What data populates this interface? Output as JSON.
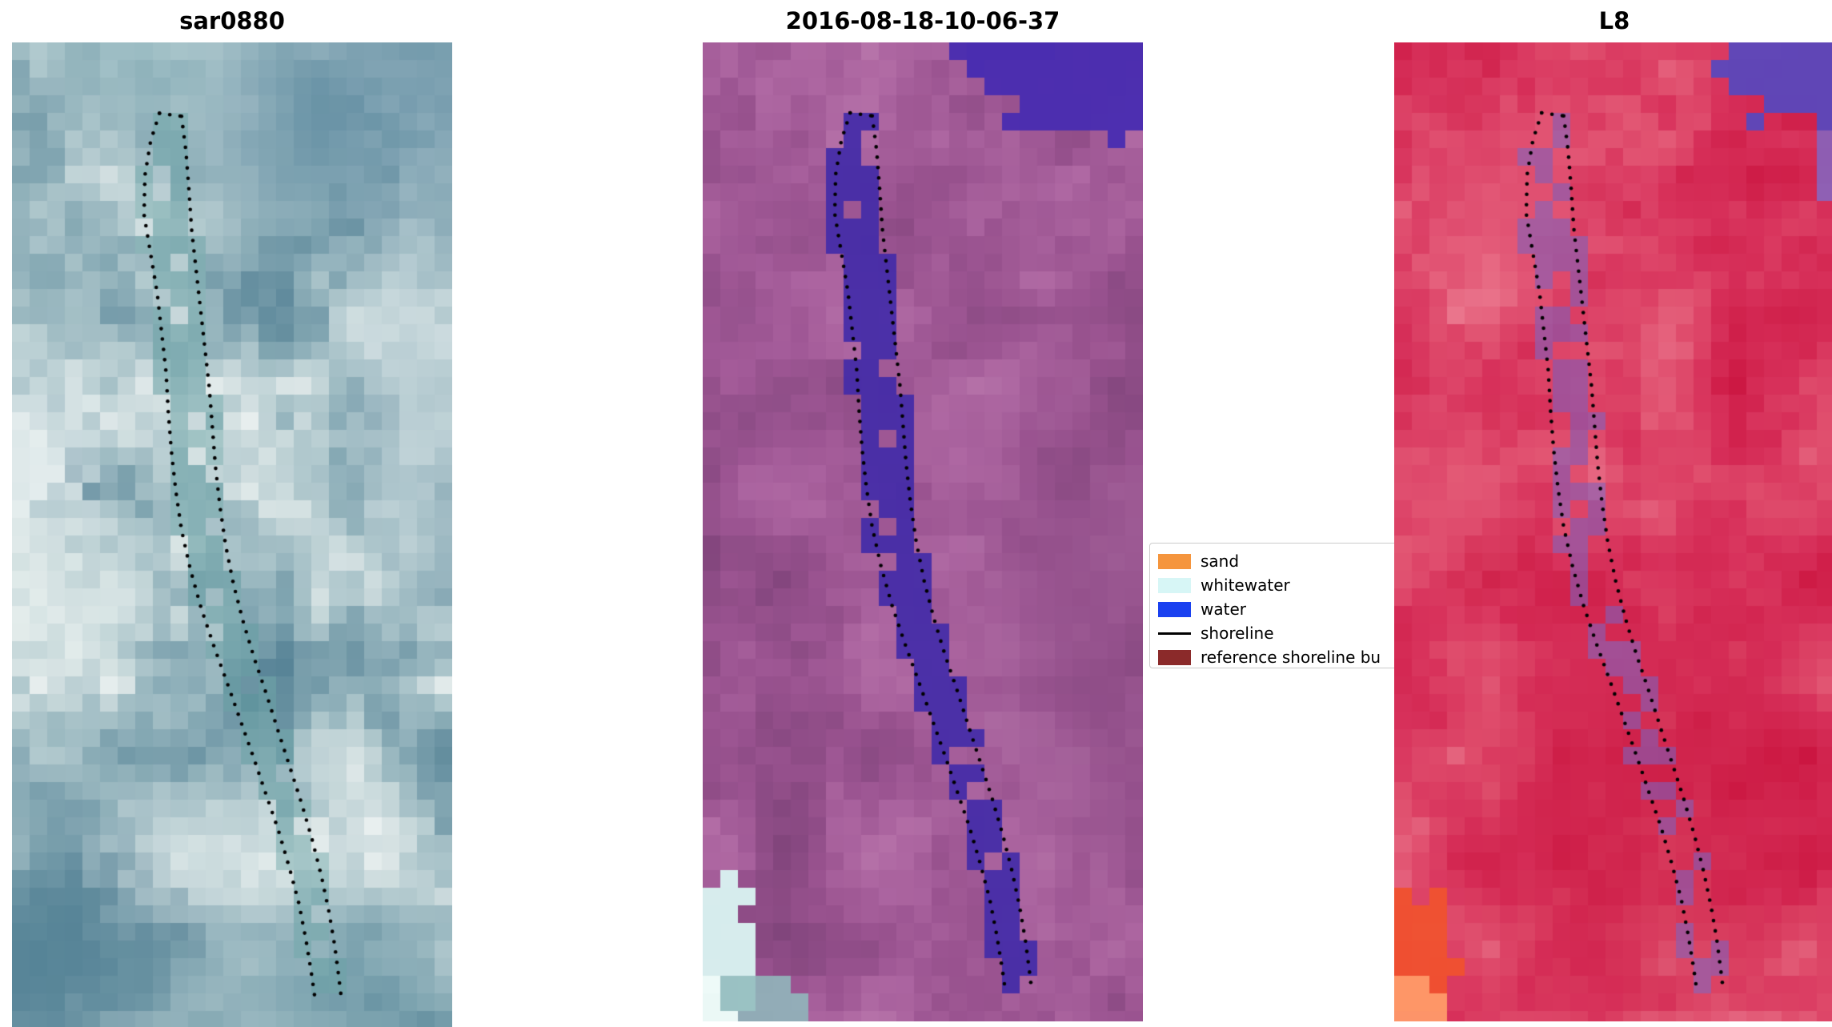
{
  "figure": {
    "background": "#ffffff"
  },
  "chart_data": {
    "type": "heatmap",
    "description": "Three pixelated coastal satellite image panels with detected shoreline (dotted black contour) overlaid",
    "panels": [
      {
        "title": "sar0880",
        "seed": 11,
        "palette": [
          {
            "t": 0,
            "color": "#527f93"
          },
          {
            "t": 0.35,
            "color": "#86a9b4"
          },
          {
            "t": 0.6,
            "color": "#b0c8cd"
          },
          {
            "t": 0.8,
            "color": "#d6e2e3"
          },
          {
            "t": 1,
            "color": "#f5f8f7"
          }
        ],
        "blobs": [
          {
            "x": 0.85,
            "y": 0.06,
            "rx": 0.45,
            "ry": 0.14,
            "color": "#5f8ba1",
            "a": 0.75
          },
          {
            "x": 0.3,
            "y": 0.0,
            "rx": 0.25,
            "ry": 0.08,
            "color": "#9dbfc5",
            "a": 0.6
          },
          {
            "x": 0.03,
            "y": 0.42,
            "rx": 0.18,
            "ry": 0.1,
            "color": "#f2f7f6",
            "a": 0.85
          },
          {
            "x": 0.12,
            "y": 0.56,
            "rx": 0.22,
            "ry": 0.09,
            "color": "#e8f0ee",
            "a": 0.7
          },
          {
            "x": 0.93,
            "y": 0.35,
            "rx": 0.2,
            "ry": 0.25,
            "color": "#cfdde1",
            "a": 0.55
          },
          {
            "x": 0.1,
            "y": 0.92,
            "rx": 0.28,
            "ry": 0.14,
            "color": "#507f93",
            "a": 0.85
          },
          {
            "x": 0.45,
            "y": 0.83,
            "rx": 0.3,
            "ry": 0.07,
            "color": "#eef4f2",
            "a": 0.65
          },
          {
            "x": 0.75,
            "y": 0.97,
            "rx": 0.3,
            "ry": 0.1,
            "color": "#6f9aa8",
            "a": 0.6
          }
        ],
        "channel": {
          "color": "#64a0a2",
          "alpha": 0.45,
          "prob": 0.85
        }
      },
      {
        "title": "2016-08-18-10-06-37",
        "seed": 42,
        "palette": [
          {
            "t": 0,
            "color": "#7e4379"
          },
          {
            "t": 0.4,
            "color": "#9a5390"
          },
          {
            "t": 0.7,
            "color": "#ad66a1"
          },
          {
            "t": 1,
            "color": "#ba78ac"
          }
        ],
        "blobs": [
          {
            "x": 0.88,
            "y": 0.0,
            "rx": 0.3,
            "ry": 0.11,
            "color": "#4a2db0",
            "a": 0.97,
            "solid": true
          },
          {
            "x": 0.66,
            "y": -0.04,
            "rx": 0.14,
            "ry": 0.09,
            "color": "#4a2db0",
            "a": 0.97,
            "solid": true
          },
          {
            "x": 0.95,
            "y": 0.6,
            "rx": 0.3,
            "ry": 0.25,
            "color": "#8a4c84",
            "a": 0.45
          },
          {
            "x": 0.15,
            "y": 0.3,
            "rx": 0.25,
            "ry": 0.2,
            "color": "#a95f9e",
            "a": 0.35
          },
          {
            "x": 0.04,
            "y": 0.92,
            "rx": 0.1,
            "ry": 0.075,
            "color": "#daf4f2",
            "a": 0.95,
            "solid": true
          },
          {
            "x": 0.13,
            "y": 0.99,
            "rx": 0.13,
            "ry": 0.05,
            "color": "#8fbabc",
            "a": 0.85,
            "solid": true
          },
          {
            "x": 0.0,
            "y": 1.0,
            "rx": 0.09,
            "ry": 0.05,
            "color": "#effbf9",
            "a": 0.95,
            "solid": true
          }
        ],
        "channel": {
          "color": "#442ca8",
          "alpha": 0.93,
          "prob": 0.88
        }
      },
      {
        "title": "L8",
        "seed": 7,
        "palette": [
          {
            "t": 0,
            "color": "#cb1540"
          },
          {
            "t": 0.45,
            "color": "#d7305a"
          },
          {
            "t": 0.75,
            "color": "#e04f6e"
          },
          {
            "t": 1,
            "color": "#ec7f94"
          }
        ],
        "blobs": [
          {
            "x": 0.92,
            "y": 0.0,
            "rx": 0.22,
            "ry": 0.09,
            "color": "#5a47bb",
            "a": 0.95,
            "solid": true
          },
          {
            "x": 1.02,
            "y": 0.13,
            "rx": 0.07,
            "ry": 0.05,
            "color": "#7c6ac9",
            "a": 0.8,
            "solid": true
          },
          {
            "x": 0.25,
            "y": 0.18,
            "rx": 0.3,
            "ry": 0.13,
            "color": "#ec7a90",
            "a": 0.45
          },
          {
            "x": 0.12,
            "y": 0.46,
            "rx": 0.24,
            "ry": 0.12,
            "color": "#e96e85",
            "a": 0.4
          },
          {
            "x": 0.6,
            "y": 0.8,
            "rx": 0.4,
            "ry": 0.22,
            "color": "#c51238",
            "a": 0.35
          },
          {
            "x": 0.05,
            "y": 0.92,
            "rx": 0.1,
            "ry": 0.07,
            "color": "#f0512f",
            "a": 0.95,
            "solid": true
          },
          {
            "x": 0.0,
            "y": 0.99,
            "rx": 0.12,
            "ry": 0.055,
            "color": "#ff9a6a",
            "a": 0.95,
            "solid": true
          }
        ],
        "channel": {
          "color": "#7a68c6",
          "alpha": 0.55,
          "prob": 0.6
        }
      }
    ],
    "shoreline": {
      "color": "#000000",
      "left": [
        [
          0.335,
          0.072
        ],
        [
          0.315,
          0.1
        ],
        [
          0.302,
          0.135
        ],
        [
          0.3,
          0.175
        ],
        [
          0.315,
          0.215
        ],
        [
          0.33,
          0.255
        ],
        [
          0.34,
          0.295
        ],
        [
          0.35,
          0.335
        ],
        [
          0.355,
          0.375
        ],
        [
          0.362,
          0.415
        ],
        [
          0.372,
          0.455
        ],
        [
          0.385,
          0.495
        ],
        [
          0.405,
          0.535
        ],
        [
          0.43,
          0.575
        ],
        [
          0.46,
          0.615
        ],
        [
          0.49,
          0.652
        ],
        [
          0.52,
          0.69
        ],
        [
          0.55,
          0.728
        ],
        [
          0.578,
          0.765
        ],
        [
          0.605,
          0.8
        ],
        [
          0.63,
          0.838
        ],
        [
          0.652,
          0.875
        ],
        [
          0.668,
          0.912
        ],
        [
          0.68,
          0.945
        ],
        [
          0.688,
          0.97
        ]
      ],
      "right": [
        [
          0.385,
          0.075
        ],
        [
          0.395,
          0.11
        ],
        [
          0.402,
          0.15
        ],
        [
          0.408,
          0.19
        ],
        [
          0.418,
          0.23
        ],
        [
          0.428,
          0.27
        ],
        [
          0.438,
          0.31
        ],
        [
          0.448,
          0.35
        ],
        [
          0.455,
          0.39
        ],
        [
          0.462,
          0.43
        ],
        [
          0.472,
          0.47
        ],
        [
          0.485,
          0.51
        ],
        [
          0.503,
          0.55
        ],
        [
          0.525,
          0.588
        ],
        [
          0.55,
          0.625
        ],
        [
          0.578,
          0.662
        ],
        [
          0.605,
          0.7
        ],
        [
          0.632,
          0.737
        ],
        [
          0.658,
          0.773
        ],
        [
          0.682,
          0.81
        ],
        [
          0.703,
          0.847
        ],
        [
          0.72,
          0.883
        ],
        [
          0.733,
          0.917
        ],
        [
          0.742,
          0.948
        ],
        [
          0.748,
          0.97
        ]
      ]
    },
    "legend": {
      "position": "center-right",
      "entries": [
        {
          "label": "sand",
          "color": "#f5953d",
          "kind": "patch"
        },
        {
          "label": "whitewater",
          "color": "#d7f6f6",
          "kind": "patch"
        },
        {
          "label": "water",
          "color": "#1a41f0",
          "kind": "patch"
        },
        {
          "label": "shoreline",
          "color": "#000000",
          "kind": "line"
        },
        {
          "label": "reference shoreline bu",
          "color": "#8b2a2a",
          "kind": "patch"
        }
      ]
    }
  }
}
